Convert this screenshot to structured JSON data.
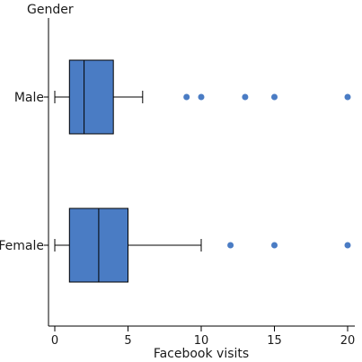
{
  "chart_data": {
    "type": "boxplot",
    "orientation": "horizontal",
    "title": "",
    "xlabel": "Facebook visits",
    "ylabel": "Gender",
    "xlim": [
      0,
      20
    ],
    "xticks": [
      0,
      5,
      10,
      15,
      20
    ],
    "grid": false,
    "box_color": "#4a7cc4",
    "outlier_color": "#4a7cc4",
    "categories": [
      "Male",
      "Female"
    ],
    "boxes": [
      {
        "category": "Male",
        "whisker_low": 0,
        "q1": 1,
        "median": 2,
        "q3": 4,
        "whisker_high": 6,
        "outliers": [
          9,
          10,
          13,
          15,
          20
        ]
      },
      {
        "category": "Female",
        "whisker_low": 0,
        "q1": 1,
        "median": 3,
        "q3": 5,
        "whisker_high": 10,
        "outliers": [
          12,
          15,
          20
        ]
      }
    ]
  }
}
